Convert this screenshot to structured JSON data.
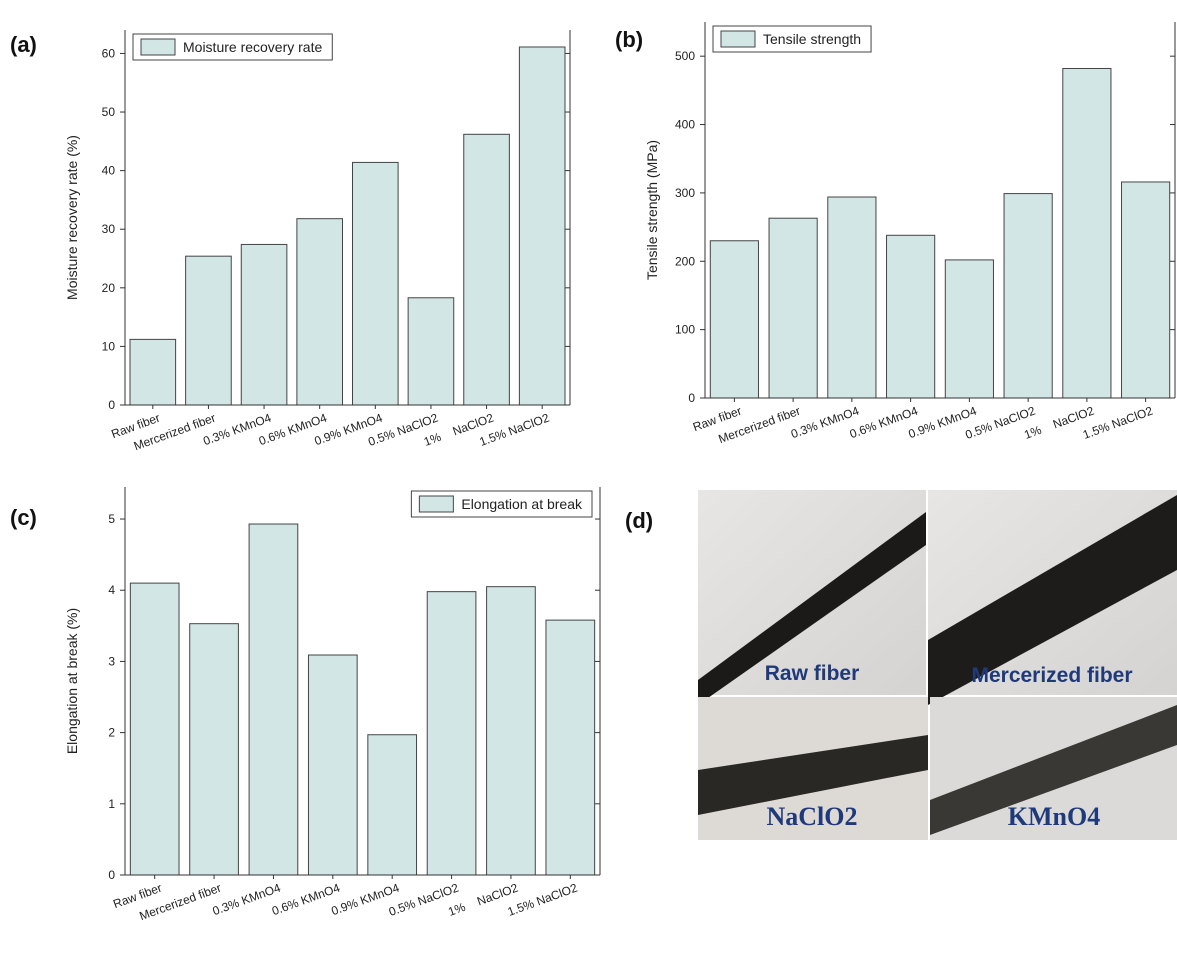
{
  "chart_data": [
    {
      "type": "bar",
      "panel_label": "(a)",
      "y_label": "Moisture recovery rate (%)",
      "categories": [
        "Raw fiber",
        "Mercerized fiber",
        "0.3% KMnO4",
        "0.6% KMnO4",
        "0.9% KMnO4",
        "0.5% NaClO2",
        "1%    NaClO2",
        "1.5% NaClO2"
      ],
      "series": [
        {
          "name": "Moisture recovery rate",
          "color": "#d3e6e6",
          "values": [
            11.2,
            25.4,
            27.4,
            31.8,
            41.4,
            18.3,
            46.2,
            61.1
          ]
        }
      ],
      "ylim": [
        0,
        64
      ],
      "yticks": [
        0,
        10,
        20,
        30,
        40,
        50,
        60
      ],
      "legend": "upper-left"
    },
    {
      "type": "bar",
      "panel_label": "(b)",
      "y_label": "Tensile strength (MPa)",
      "categories": [
        "Raw fiber",
        "Mercerized fiber",
        "0.3% KMnO4",
        "0.6% KMnO4",
        "0.9% KMnO4",
        "0.5% NaClO2",
        "1%    NaClO2",
        "1.5% NaClO2"
      ],
      "series": [
        {
          "name": "Tensile strength",
          "color": "#d3e6e6",
          "values": [
            230,
            263,
            294,
            238,
            202,
            299,
            482,
            316
          ]
        }
      ],
      "ylim": [
        0,
        550
      ],
      "yticks": [
        0,
        100,
        200,
        300,
        400,
        500
      ],
      "legend": "upper-left"
    },
    {
      "type": "bar",
      "panel_label": "(c)",
      "y_label": "Elongation at break (%)",
      "categories": [
        "Raw fiber",
        "Mercerized fiber",
        "0.3% KMnO4",
        "0.6% KMnO4",
        "0.9% KMnO4",
        "0.5% NaClO2",
        "1%    NaClO2",
        "1.5% NaClO2"
      ],
      "series": [
        {
          "name": "Elongation at break",
          "color": "#d3e6e6",
          "values": [
            4.1,
            3.53,
            4.93,
            3.09,
            1.97,
            3.98,
            4.05,
            3.58
          ]
        }
      ],
      "ylim": [
        0,
        5.45
      ],
      "yticks": [
        0,
        1,
        2,
        3,
        4,
        5
      ],
      "legend": "upper-right"
    }
  ],
  "photo_panel": {
    "panel_label": "(d)",
    "captions": [
      "Raw fiber",
      "Mercerized fiber",
      "NaClO2",
      "KMnO4"
    ]
  }
}
